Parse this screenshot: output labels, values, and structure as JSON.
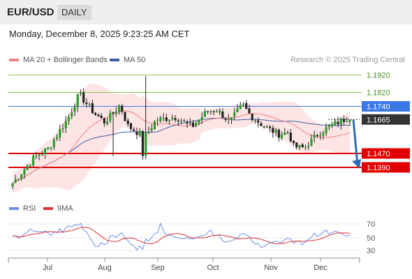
{
  "header": {
    "symbol": "EUR/USD",
    "timeframe": "DAILY"
  },
  "timestamp": "Monday, December 8, 2025 9:23:25 AM CET",
  "legend": {
    "ma20": {
      "label": "MA 20 + Bollinger Bands",
      "color": "#f08080"
    },
    "ma50": {
      "label": "MA 50",
      "color": "#3b5ea8"
    },
    "rsi": {
      "label": "RSI",
      "color": "#6a8ee8"
    },
    "ma9": {
      "label": "9MA",
      "color": "#e03030"
    }
  },
  "credit": "Research © 2025 Trading Central",
  "chart_data": [
    {
      "type": "candlestick",
      "title": "EUR/USD",
      "x_ticks": [
        "Jul",
        "Aug",
        "Sep",
        "Oct",
        "Nov",
        "Dec"
      ],
      "ylim": [
        1.125,
        1.197
      ],
      "series": [
        {
          "name": "MA 20 + Bollinger Bands"
        },
        {
          "name": "MA 50"
        }
      ],
      "levels": [
        {
          "value": 1.192,
          "label": "1.1920",
          "color": "#8bc34a",
          "style": "thin-line",
          "label_style": "text"
        },
        {
          "value": 1.182,
          "label": "1.1820",
          "color": "#8bc34a",
          "style": "thin-line",
          "label_style": "text"
        },
        {
          "value": 1.174,
          "label": "1.1740",
          "color": "#3b78e7",
          "style": "line",
          "label_style": "box"
        },
        {
          "value": 1.1665,
          "label": "1.1665",
          "color": "#333333",
          "style": "dotted",
          "label_style": "box"
        },
        {
          "value": 1.147,
          "label": "1.1470",
          "color": "#e00000",
          "style": "thick",
          "label_style": "box"
        },
        {
          "value": 1.139,
          "label": "1.1390",
          "color": "#e00000",
          "style": "thick",
          "label_style": "box"
        }
      ],
      "projection": {
        "from": 1.1665,
        "to": 1.139,
        "color": "#2e6db4"
      }
    },
    {
      "type": "line",
      "title": "RSI",
      "ylim": [
        25,
        75
      ],
      "y_ticks": [
        70,
        50,
        30
      ],
      "series": [
        {
          "name": "RSI"
        },
        {
          "name": "9MA"
        }
      ]
    }
  ]
}
